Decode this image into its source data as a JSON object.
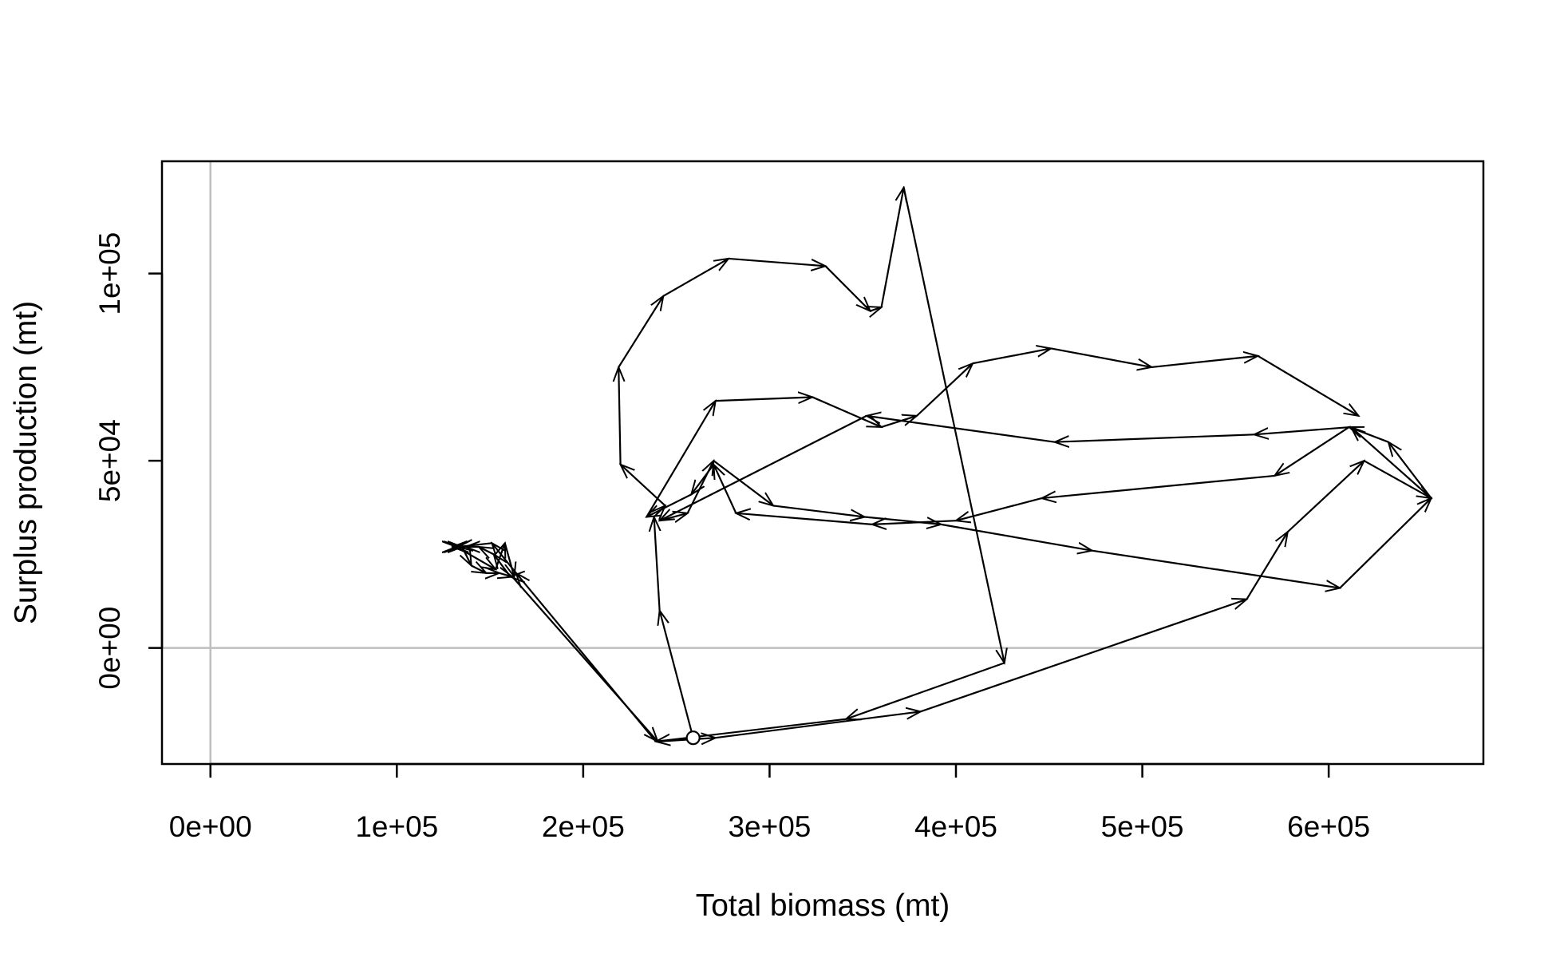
{
  "chart_data": {
    "type": "line",
    "xlabel": "Total biomass (mt)",
    "ylabel": "Surplus production (mt)",
    "xlim": [
      -26000,
      683000
    ],
    "ylim": [
      -31000,
      130000
    ],
    "x_ticks": [
      {
        "value": 0,
        "label": "0e+00"
      },
      {
        "value": 100000,
        "label": "1e+05"
      },
      {
        "value": 200000,
        "label": "2e+05"
      },
      {
        "value": 300000,
        "label": "3e+05"
      },
      {
        "value": 400000,
        "label": "4e+05"
      },
      {
        "value": 500000,
        "label": "5e+05"
      },
      {
        "value": 600000,
        "label": "6e+05"
      }
    ],
    "y_ticks": [
      {
        "value": 0,
        "label": "0e+00"
      },
      {
        "value": 50000,
        "label": "5e+04"
      },
      {
        "value": 100000,
        "label": "1e+05"
      }
    ],
    "reference_lines": {
      "x": 0,
      "y": 0,
      "color": "#bebebe"
    },
    "grid": false,
    "legend": "none",
    "line_color": "#000000",
    "start_marker": "open-circle",
    "series": [
      {
        "x": [
          259000,
          241000,
          238000,
          244000,
          220000,
          219000,
          243000,
          278000,
          330000,
          354000,
          360000,
          372000,
          426000,
          341000,
          239000,
          164000,
          151000,
          133000,
          130000,
          132000,
          153000,
          158000,
          163000,
          161000,
          152000,
          144000,
          137000,
          131000,
          133000,
          131000,
          130000,
          132000,
          135000,
          140000,
          148000,
          155000,
          162000,
          240000,
          271000,
          381000,
          556000,
          578000,
          619000,
          655000,
          612000,
          560000,
          453000,
          352000,
          241000,
          256000,
          270000,
          302000,
          351000,
          392000,
          473000,
          606000,
          655000,
          632000,
          611000,
          571000,
          446000,
          400000,
          355000,
          282000,
          270000,
          258000,
          234000,
          271000,
          323000,
          360000,
          379000,
          409000,
          451000,
          505000,
          562000,
          616000
        ],
        "y": [
          -24000,
          10000,
          35000,
          38000,
          49000,
          75000,
          94000,
          104000,
          102000,
          90000,
          91000,
          123000,
          -4000,
          -19000,
          -25000,
          20000,
          28000,
          27000,
          27000,
          27000,
          21000,
          28000,
          19000,
          19000,
          25000,
          27000,
          27000,
          27000,
          27000,
          27000,
          27000,
          27000,
          27000,
          22000,
          20000,
          20000,
          19000,
          -25000,
          -24000,
          -17000,
          13000,
          31000,
          50000,
          40000,
          59000,
          57000,
          55000,
          62000,
          34000,
          36000,
          50000,
          38000,
          35000,
          33000,
          26000,
          16000,
          40000,
          55000,
          59000,
          46000,
          40000,
          34000,
          33000,
          36000,
          49000,
          41000,
          35000,
          66000,
          67000,
          59000,
          62000,
          76000,
          80000,
          75000,
          78000,
          62000
        ]
      }
    ]
  }
}
